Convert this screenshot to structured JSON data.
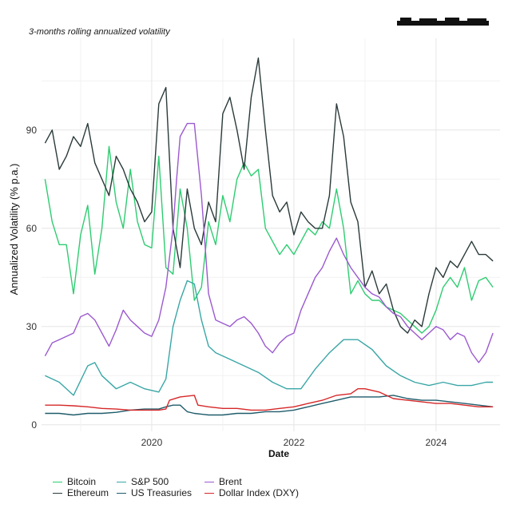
{
  "subtitle": "3-months rolling annualized volatility",
  "chart_data": {
    "type": "line",
    "subtitle": "3-months rolling annualized volatility",
    "xlabel": "Date",
    "ylabel": "Annualized Volatility (% p.a.)",
    "xlim": [
      2018.45,
      2024.9
    ],
    "ylim": [
      -2,
      118
    ],
    "x_ticks": [
      2020,
      2022,
      2024
    ],
    "y_ticks": [
      0,
      30,
      60,
      90
    ],
    "grid": true,
    "legend_position": "bottom",
    "series": [
      {
        "name": "Bitcoin",
        "color": "#2ecc71",
        "x": [
          2018.5,
          2018.6,
          2018.7,
          2018.8,
          2018.9,
          2019.0,
          2019.1,
          2019.2,
          2019.3,
          2019.4,
          2019.5,
          2019.6,
          2019.7,
          2019.8,
          2019.9,
          2020.0,
          2020.1,
          2020.2,
          2020.3,
          2020.4,
          2020.5,
          2020.6,
          2020.7,
          2020.8,
          2020.9,
          2021.0,
          2021.1,
          2021.2,
          2021.3,
          2021.4,
          2021.5,
          2021.6,
          2021.7,
          2021.8,
          2021.9,
          2022.0,
          2022.1,
          2022.2,
          2022.3,
          2022.4,
          2022.5,
          2022.6,
          2022.7,
          2022.8,
          2022.9,
          2023.0,
          2023.1,
          2023.2,
          2023.3,
          2023.4,
          2023.5,
          2023.6,
          2023.7,
          2023.8,
          2023.9,
          2024.0,
          2024.1,
          2024.2,
          2024.3,
          2024.4,
          2024.5,
          2024.6,
          2024.7,
          2024.8
        ],
        "values": [
          75,
          62,
          55,
          55,
          40,
          58,
          67,
          46,
          60,
          85,
          68,
          60,
          78,
          62,
          55,
          54,
          82,
          48,
          46,
          72,
          60,
          38,
          42,
          62,
          55,
          70,
          62,
          75,
          80,
          76,
          78,
          60,
          56,
          52,
          55,
          52,
          56,
          60,
          58,
          62,
          60,
          72,
          60,
          40,
          44,
          40,
          38,
          38,
          36,
          35,
          34,
          32,
          30,
          28,
          30,
          35,
          42,
          45,
          42,
          48,
          38,
          44,
          45,
          42
        ]
      },
      {
        "name": "Ethereum",
        "color": "#2b3a3a",
        "x": [
          2018.5,
          2018.6,
          2018.7,
          2018.8,
          2018.9,
          2019.0,
          2019.1,
          2019.2,
          2019.3,
          2019.4,
          2019.5,
          2019.6,
          2019.7,
          2019.8,
          2019.9,
          2020.0,
          2020.1,
          2020.2,
          2020.3,
          2020.4,
          2020.5,
          2020.6,
          2020.7,
          2020.8,
          2020.9,
          2021.0,
          2021.1,
          2021.2,
          2021.3,
          2021.4,
          2021.5,
          2021.6,
          2021.7,
          2021.8,
          2021.9,
          2022.0,
          2022.1,
          2022.2,
          2022.3,
          2022.4,
          2022.5,
          2022.6,
          2022.7,
          2022.8,
          2022.9,
          2023.0,
          2023.1,
          2023.2,
          2023.3,
          2023.4,
          2023.5,
          2023.6,
          2023.7,
          2023.8,
          2023.9,
          2024.0,
          2024.1,
          2024.2,
          2024.3,
          2024.4,
          2024.5,
          2024.6,
          2024.7,
          2024.8
        ],
        "values": [
          86,
          90,
          78,
          82,
          88,
          85,
          92,
          80,
          75,
          70,
          82,
          78,
          72,
          68,
          62,
          65,
          98,
          103,
          60,
          48,
          72,
          60,
          55,
          68,
          62,
          95,
          100,
          90,
          78,
          100,
          112,
          90,
          70,
          65,
          68,
          58,
          65,
          62,
          60,
          60,
          70,
          98,
          88,
          68,
          62,
          42,
          47,
          40,
          43,
          35,
          30,
          28,
          32,
          30,
          40,
          48,
          45,
          50,
          48,
          52,
          56,
          52,
          52,
          50
        ]
      },
      {
        "name": "S&P 500",
        "color": "#3aa6a6",
        "x": [
          2018.5,
          2018.7,
          2018.9,
          2019.1,
          2019.2,
          2019.3,
          2019.5,
          2019.7,
          2019.9,
          2020.1,
          2020.2,
          2020.3,
          2020.4,
          2020.5,
          2020.6,
          2020.7,
          2020.8,
          2020.9,
          2021.1,
          2021.3,
          2021.5,
          2021.7,
          2021.9,
          2022.1,
          2022.3,
          2022.5,
          2022.7,
          2022.9,
          2023.1,
          2023.3,
          2023.5,
          2023.7,
          2023.9,
          2024.1,
          2024.3,
          2024.5,
          2024.7,
          2024.8
        ],
        "values": [
          15,
          13,
          9,
          18,
          19,
          15,
          11,
          13,
          11,
          10,
          14,
          30,
          38,
          44,
          43,
          32,
          24,
          22,
          20,
          18,
          16,
          13,
          11,
          11,
          17,
          22,
          26,
          26,
          23,
          18,
          15,
          13,
          12,
          13,
          12,
          12,
          13,
          13
        ]
      },
      {
        "name": "US Treasuries",
        "color": "#1f5c6b",
        "x": [
          2018.5,
          2018.7,
          2018.9,
          2019.1,
          2019.3,
          2019.5,
          2019.7,
          2019.9,
          2020.1,
          2020.2,
          2020.3,
          2020.4,
          2020.5,
          2020.6,
          2020.8,
          2021.0,
          2021.2,
          2021.4,
          2021.6,
          2021.8,
          2022.0,
          2022.2,
          2022.4,
          2022.6,
          2022.8,
          2023.0,
          2023.2,
          2023.4,
          2023.6,
          2023.8,
          2024.0,
          2024.2,
          2024.4,
          2024.6,
          2024.8
        ],
        "values": [
          3.5,
          3.5,
          3,
          3.5,
          3.5,
          3.8,
          4.5,
          4.8,
          4.8,
          5.5,
          6,
          6,
          4,
          3.5,
          3,
          3,
          3.5,
          3.5,
          4,
          4,
          4.5,
          5.5,
          6.5,
          7.5,
          8.5,
          8.5,
          8.5,
          9,
          8,
          7.5,
          7.5,
          7,
          6.5,
          6,
          5.5
        ]
      },
      {
        "name": "Brent",
        "color": "#9b59d0",
        "x": [
          2018.5,
          2018.6,
          2018.7,
          2018.8,
          2018.9,
          2019.0,
          2019.1,
          2019.2,
          2019.3,
          2019.4,
          2019.5,
          2019.6,
          2019.7,
          2019.8,
          2019.9,
          2020.0,
          2020.1,
          2020.2,
          2020.3,
          2020.35,
          2020.4,
          2020.5,
          2020.6,
          2020.7,
          2020.8,
          2020.9,
          2021.0,
          2021.1,
          2021.2,
          2021.3,
          2021.4,
          2021.5,
          2021.6,
          2021.7,
          2021.8,
          2021.9,
          2022.0,
          2022.1,
          2022.2,
          2022.3,
          2022.4,
          2022.5,
          2022.6,
          2022.7,
          2022.8,
          2022.9,
          2023.0,
          2023.1,
          2023.2,
          2023.3,
          2023.4,
          2023.5,
          2023.6,
          2023.7,
          2023.8,
          2023.9,
          2024.0,
          2024.1,
          2024.2,
          2024.3,
          2024.4,
          2024.5,
          2024.6,
          2024.7,
          2024.8
        ],
        "values": [
          21,
          25,
          26,
          27,
          28,
          33,
          34,
          32,
          28,
          24,
          29,
          35,
          32,
          30,
          28,
          27,
          32,
          42,
          60,
          75,
          88,
          92,
          92,
          70,
          40,
          32,
          31,
          30,
          32,
          33,
          31,
          28,
          24,
          22,
          25,
          27,
          28,
          35,
          40,
          45,
          48,
          53,
          57,
          52,
          48,
          45,
          42,
          40,
          39,
          36,
          34,
          33,
          30,
          28,
          26,
          28,
          30,
          29,
          26,
          28,
          27,
          22,
          19,
          22,
          28
        ]
      },
      {
        "name": "Dollar Index (DXY)",
        "color": "#d62728",
        "x": [
          2018.5,
          2018.7,
          2018.9,
          2019.1,
          2019.3,
          2019.5,
          2019.7,
          2019.9,
          2020.1,
          2020.2,
          2020.25,
          2020.4,
          2020.6,
          2020.65,
          2020.8,
          2021.0,
          2021.2,
          2021.4,
          2021.6,
          2021.8,
          2022.0,
          2022.2,
          2022.4,
          2022.6,
          2022.8,
          2022.9,
          2023.0,
          2023.2,
          2023.4,
          2023.6,
          2023.8,
          2024.0,
          2024.2,
          2024.4,
          2024.6,
          2024.8
        ],
        "values": [
          6,
          6,
          5.8,
          5.5,
          5,
          4.8,
          4.5,
          4.5,
          4.5,
          4.8,
          7.5,
          8.5,
          9,
          6,
          5.5,
          5,
          5,
          4.5,
          4.5,
          5,
          5.5,
          6.5,
          7.5,
          9,
          9.5,
          11,
          11,
          10,
          8,
          7.5,
          7,
          6.5,
          6.5,
          6,
          5.5,
          5.5
        ]
      }
    ]
  }
}
